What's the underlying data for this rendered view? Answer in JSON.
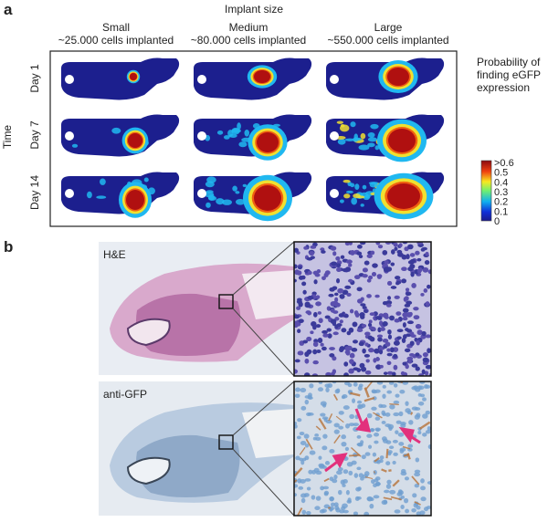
{
  "panel_a": {
    "label": "a",
    "title": "Implant size",
    "row_axis": "Time",
    "columns": [
      {
        "name": "Small",
        "detail": "~25.000 cells implanted"
      },
      {
        "name": "Medium",
        "detail": "~80.000 cells implanted"
      },
      {
        "name": "Large",
        "detail": "~550.000 cells implanted"
      }
    ],
    "rows": [
      "Day 1",
      "Day 7",
      "Day 14"
    ],
    "colorbar": {
      "title": [
        "Probability of",
        "finding eGFP",
        "expression"
      ],
      "ticks": [
        ">0.6",
        "0.5",
        "0.4",
        "0.3",
        "0.2",
        "0.1",
        "0"
      ]
    }
  },
  "panel_b": {
    "label": "b",
    "images": [
      "H&E",
      "anti-GFP"
    ]
  }
}
